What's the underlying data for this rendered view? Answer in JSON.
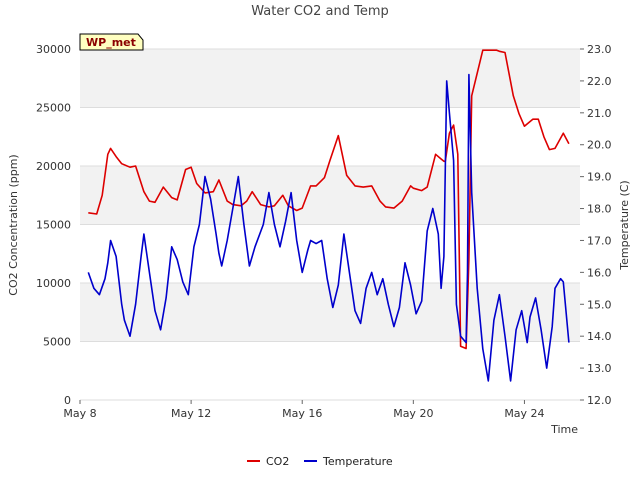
{
  "chart_data": {
    "type": "line",
    "title": "Water CO2 and Temp",
    "site_badge": "WP_met",
    "xlabel": "Time",
    "ylabel_left": "CO2 Concentration (ppm)",
    "ylabel_right": "Temperature (C)",
    "x_ticks": [
      "May 8",
      "May 12",
      "May 16",
      "May 20",
      "May 24"
    ],
    "xlim_days": [
      8,
      26
    ],
    "ylim_left": [
      0,
      30000
    ],
    "ylim_right": [
      12.0,
      23.0
    ],
    "y_ticks_left": [
      "0",
      "5000",
      "10000",
      "15000",
      "20000",
      "25000",
      "30000"
    ],
    "y_ticks_right": [
      "12.0",
      "13.0",
      "14.0",
      "15.0",
      "16.0",
      "17.0",
      "18.0",
      "19.0",
      "20.0",
      "21.0",
      "22.0",
      "23.0"
    ],
    "grid": "horizontal alternating bands",
    "legend_placement": "bottom-center",
    "series": [
      {
        "name": "CO2",
        "axis": "left",
        "color": "#dd0000",
        "x": [
          8.3,
          8.6,
          8.8,
          9.0,
          9.1,
          9.3,
          9.5,
          9.8,
          10.0,
          10.3,
          10.5,
          10.7,
          11.0,
          11.3,
          11.5,
          11.8,
          12.0,
          12.2,
          12.5,
          12.8,
          13.0,
          13.3,
          13.5,
          13.8,
          14.0,
          14.2,
          14.5,
          14.8,
          15.0,
          15.3,
          15.5,
          15.8,
          16.0,
          16.3,
          16.5,
          16.8,
          17.0,
          17.3,
          17.6,
          17.9,
          18.2,
          18.5,
          18.8,
          19.0,
          19.3,
          19.6,
          19.9,
          20.0,
          20.3,
          20.5,
          20.8,
          21.0,
          21.1,
          21.15,
          21.3,
          21.45,
          21.6,
          21.7,
          21.9,
          22.0,
          22.1,
          22.5,
          23.0,
          23.1,
          23.3,
          23.6,
          23.8,
          24.0,
          24.3,
          24.5,
          24.7,
          24.9,
          25.1,
          25.4,
          25.6
        ],
        "y": [
          16000,
          15900,
          17500,
          21000,
          21500,
          20800,
          20200,
          19900,
          20000,
          17800,
          17000,
          16900,
          18200,
          17300,
          17100,
          19700,
          19900,
          18500,
          17700,
          17800,
          18800,
          17000,
          16700,
          16600,
          17000,
          17800,
          16700,
          16500,
          16600,
          17500,
          16600,
          16200,
          16400,
          18300,
          18300,
          19000,
          20500,
          22600,
          19200,
          18300,
          18200,
          18300,
          17000,
          16500,
          16400,
          17000,
          18300,
          18100,
          17900,
          18200,
          21000,
          20600,
          20400,
          20400,
          22800,
          23500,
          21000,
          4600,
          4400,
          12000,
          26000,
          29900,
          29900,
          29800,
          29700,
          26000,
          24500,
          23400,
          24000,
          24000,
          22500,
          21400,
          21500,
          22800,
          21900
        ]
      },
      {
        "name": "Temperature",
        "axis": "right",
        "color": "#0000cc",
        "x": [
          8.3,
          8.5,
          8.7,
          8.9,
          9.0,
          9.1,
          9.3,
          9.5,
          9.6,
          9.8,
          10.0,
          10.2,
          10.3,
          10.5,
          10.7,
          10.9,
          11.1,
          11.3,
          11.5,
          11.7,
          11.9,
          12.1,
          12.3,
          12.5,
          12.7,
          12.9,
          13.0,
          13.1,
          13.3,
          13.5,
          13.7,
          13.9,
          14.1,
          14.3,
          14.6,
          14.8,
          15.0,
          15.2,
          15.4,
          15.6,
          15.8,
          16.0,
          16.2,
          16.3,
          16.5,
          16.7,
          16.9,
          17.1,
          17.3,
          17.5,
          17.7,
          17.9,
          18.1,
          18.3,
          18.5,
          18.7,
          18.9,
          19.1,
          19.3,
          19.5,
          19.7,
          19.9,
          20.1,
          20.3,
          20.5,
          20.7,
          20.9,
          21.0,
          21.1,
          21.2,
          21.3,
          21.45,
          21.55,
          21.7,
          21.9,
          21.95,
          22.0,
          22.1,
          22.3,
          22.5,
          22.7,
          22.9,
          23.1,
          23.3,
          23.5,
          23.7,
          23.9,
          24.1,
          24.2,
          24.4,
          24.6,
          24.8,
          25.0,
          25.1,
          25.3,
          25.4,
          25.6
        ],
        "y": [
          16.0,
          15.5,
          15.3,
          15.8,
          16.3,
          17.0,
          16.5,
          15.0,
          14.5,
          14.0,
          15.0,
          16.5,
          17.2,
          16.0,
          14.8,
          14.2,
          15.2,
          16.8,
          16.4,
          15.7,
          15.3,
          16.8,
          17.5,
          19.0,
          18.3,
          17.2,
          16.6,
          16.2,
          17.0,
          18.0,
          19.0,
          17.5,
          16.2,
          16.8,
          17.5,
          18.5,
          17.5,
          16.8,
          17.6,
          18.5,
          17.0,
          16.0,
          16.7,
          17.0,
          16.9,
          17.0,
          15.8,
          14.9,
          15.6,
          17.2,
          16.0,
          14.8,
          14.4,
          15.5,
          16.0,
          15.3,
          15.8,
          15.0,
          14.3,
          14.9,
          16.3,
          15.6,
          14.7,
          15.1,
          17.3,
          18.0,
          17.2,
          15.5,
          16.5,
          22.0,
          21.0,
          19.5,
          15.0,
          14.0,
          13.8,
          16.0,
          22.2,
          18.5,
          15.5,
          13.6,
          12.6,
          14.5,
          15.3,
          14.0,
          12.6,
          14.2,
          14.8,
          13.8,
          14.6,
          15.2,
          14.2,
          13.0,
          14.3,
          15.5,
          15.8,
          15.7,
          13.8
        ]
      }
    ]
  }
}
